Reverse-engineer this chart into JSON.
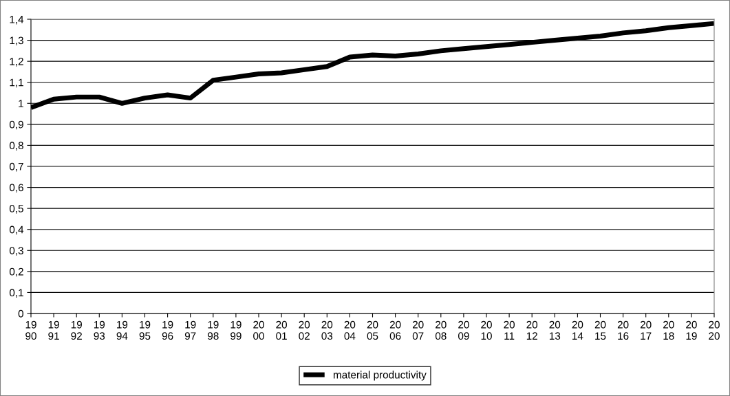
{
  "chart_data": {
    "type": "line",
    "categories": [
      "19\n90",
      "19\n91",
      "19\n92",
      "19\n93",
      "19\n94",
      "19\n95",
      "19\n96",
      "19\n97",
      "19\n98",
      "19\n99",
      "20\n00",
      "20\n01",
      "20\n02",
      "20\n03",
      "20\n04",
      "20\n05",
      "20\n06",
      "20\n07",
      "20\n08",
      "20\n09",
      "20\n10",
      "20\n11",
      "20\n12",
      "20\n13",
      "20\n14",
      "20\n15",
      "20\n16",
      "20\n17",
      "20\n18",
      "20\n19",
      "20\n20"
    ],
    "series": [
      {
        "name": "material productivity",
        "color": "#000000",
        "values": [
          0.98,
          1.02,
          1.03,
          1.03,
          1.0,
          1.025,
          1.04,
          1.025,
          1.11,
          1.125,
          1.14,
          1.145,
          1.16,
          1.175,
          1.22,
          1.23,
          1.225,
          1.235,
          1.25,
          1.26,
          1.27,
          1.28,
          1.29,
          1.3,
          1.31,
          1.32,
          1.335,
          1.345,
          1.36,
          1.37,
          1.38
        ]
      }
    ],
    "ylim": [
      0,
      1.4
    ],
    "yticks": [
      {
        "value": 0,
        "label": "0"
      },
      {
        "value": 0.1,
        "label": "0,1"
      },
      {
        "value": 0.2,
        "label": "0,2"
      },
      {
        "value": 0.3,
        "label": "0,3"
      },
      {
        "value": 0.4,
        "label": "0,4"
      },
      {
        "value": 0.5,
        "label": "0,5"
      },
      {
        "value": 0.6,
        "label": "0,6"
      },
      {
        "value": 0.7,
        "label": "0,7"
      },
      {
        "value": 0.8,
        "label": "0,8"
      },
      {
        "value": 0.9,
        "label": "0,9"
      },
      {
        "value": 1,
        "label": "1"
      },
      {
        "value": 1.1,
        "label": "1,1"
      },
      {
        "value": 1.2,
        "label": "1,2"
      },
      {
        "value": 1.3,
        "label": "1,3"
      },
      {
        "value": 1.4,
        "label": "1,4"
      }
    ],
    "grid": "y",
    "legend": "bottom",
    "marker": "none",
    "line_style": "solid"
  }
}
